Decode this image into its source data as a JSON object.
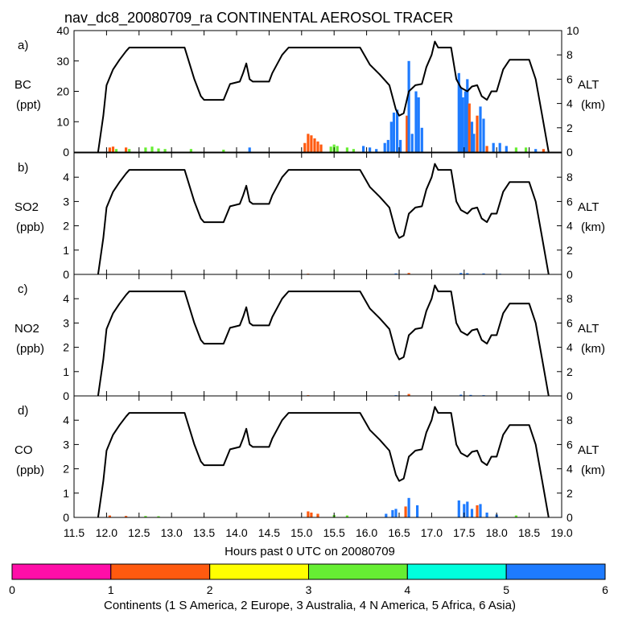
{
  "chart_data": {
    "type": "bar",
    "title": "nav_dc8_20080709_ra CONTINENTAL AEROSOL TRACER",
    "xlabel": "Hours past 0 UTC on 20080709",
    "xlim": [
      11.5,
      19.0
    ],
    "xticks": [
      "11.5",
      "12.0",
      "12.5",
      "13.0",
      "13.5",
      "14.0",
      "14.5",
      "15.0",
      "15.5",
      "16.0",
      "16.5",
      "17.0",
      "17.5",
      "18.0",
      "18.5",
      "19.0"
    ],
    "altitude": {
      "label": "ALT",
      "units": "(km)",
      "ylim": [
        0,
        10
      ],
      "yticks": [
        "0",
        "2",
        "4",
        "6",
        "8"
      ],
      "yticks_top": [
        "0",
        "2",
        "4",
        "6",
        "8",
        "10"
      ],
      "points": [
        [
          11.87,
          0
        ],
        [
          11.95,
          3.0
        ],
        [
          12.0,
          5.5
        ],
        [
          12.1,
          6.8
        ],
        [
          12.2,
          7.6
        ],
        [
          12.3,
          8.3
        ],
        [
          12.35,
          8.6
        ],
        [
          13.2,
          8.6
        ],
        [
          13.35,
          6.0
        ],
        [
          13.45,
          4.6
        ],
        [
          13.5,
          4.3
        ],
        [
          13.55,
          4.3
        ],
        [
          13.8,
          4.3
        ],
        [
          13.9,
          5.6
        ],
        [
          14.05,
          5.8
        ],
        [
          14.1,
          6.5
        ],
        [
          14.15,
          7.3
        ],
        [
          14.2,
          6.0
        ],
        [
          14.25,
          5.8
        ],
        [
          14.5,
          5.8
        ],
        [
          14.55,
          6.5
        ],
        [
          14.7,
          8.0
        ],
        [
          14.8,
          8.6
        ],
        [
          15.9,
          8.6
        ],
        [
          16.05,
          7.2
        ],
        [
          16.2,
          6.4
        ],
        [
          16.35,
          5.5
        ],
        [
          16.45,
          3.5
        ],
        [
          16.5,
          3.0
        ],
        [
          16.57,
          3.2
        ],
        [
          16.65,
          5.0
        ],
        [
          16.75,
          5.5
        ],
        [
          16.85,
          5.6
        ],
        [
          16.92,
          7.0
        ],
        [
          17.0,
          8.0
        ],
        [
          17.05,
          9.1
        ],
        [
          17.1,
          8.6
        ],
        [
          17.3,
          8.6
        ],
        [
          17.38,
          6.0
        ],
        [
          17.45,
          5.3
        ],
        [
          17.55,
          5.0
        ],
        [
          17.62,
          5.4
        ],
        [
          17.7,
          5.5
        ],
        [
          17.77,
          4.6
        ],
        [
          17.85,
          4.3
        ],
        [
          17.92,
          5.0
        ],
        [
          18.0,
          5.0
        ],
        [
          18.1,
          6.8
        ],
        [
          18.2,
          7.6
        ],
        [
          18.5,
          7.6
        ],
        [
          18.6,
          6.0
        ],
        [
          18.7,
          3.0
        ],
        [
          18.8,
          0
        ]
      ]
    },
    "panels": [
      {
        "letter": "a)",
        "species": "BC",
        "units": "(ppt)",
        "ylim": [
          0,
          40
        ],
        "yticks": [
          "0",
          "10",
          "20",
          "30",
          "40"
        ],
        "spikes": [
          [
            12.05,
            1.5,
            2
          ],
          [
            12.1,
            1.8,
            2
          ],
          [
            12.15,
            1,
            4
          ],
          [
            12.3,
            1.5,
            2
          ],
          [
            12.35,
            1,
            4
          ],
          [
            12.6,
            1.5,
            4
          ],
          [
            12.7,
            1.8,
            4
          ],
          [
            12.8,
            1.2,
            4
          ],
          [
            12.9,
            1,
            4
          ],
          [
            13.3,
            1,
            4
          ],
          [
            13.8,
            0.8,
            4
          ],
          [
            14.2,
            1.5,
            6
          ],
          [
            15.05,
            3,
            2
          ],
          [
            15.1,
            6,
            2
          ],
          [
            15.15,
            5.5,
            2
          ],
          [
            15.2,
            4.5,
            2
          ],
          [
            15.25,
            3.5,
            2
          ],
          [
            15.3,
            2.5,
            2
          ],
          [
            15.45,
            1.8,
            4
          ],
          [
            15.5,
            2.5,
            4
          ],
          [
            15.55,
            2,
            4
          ],
          [
            15.7,
            1.5,
            4
          ],
          [
            15.8,
            1,
            4
          ],
          [
            15.95,
            2,
            6
          ],
          [
            16.05,
            1.5,
            6
          ],
          [
            16.15,
            1,
            6
          ],
          [
            16.28,
            3,
            6
          ],
          [
            16.33,
            4,
            6
          ],
          [
            16.38,
            10,
            6
          ],
          [
            16.42,
            13,
            6
          ],
          [
            16.47,
            14,
            6
          ],
          [
            16.52,
            4,
            6
          ],
          [
            16.62,
            12,
            2
          ],
          [
            16.65,
            30,
            6
          ],
          [
            16.7,
            6,
            6
          ],
          [
            16.76,
            20,
            6
          ],
          [
            16.8,
            18,
            6
          ],
          [
            16.85,
            8,
            6
          ],
          [
            17.42,
            26,
            6
          ],
          [
            17.45,
            21,
            6
          ],
          [
            17.48,
            18,
            6
          ],
          [
            17.52,
            20,
            6
          ],
          [
            17.55,
            24,
            6
          ],
          [
            17.58,
            16,
            2
          ],
          [
            17.62,
            10,
            6
          ],
          [
            17.65,
            6,
            6
          ],
          [
            17.7,
            12,
            2
          ],
          [
            17.75,
            15,
            6
          ],
          [
            17.8,
            11,
            6
          ],
          [
            17.85,
            2,
            2
          ],
          [
            17.95,
            3,
            6
          ],
          [
            18.05,
            3,
            6
          ],
          [
            18.15,
            2,
            6
          ],
          [
            18.3,
            1.5,
            4
          ],
          [
            18.45,
            1.5,
            4
          ],
          [
            18.6,
            1,
            6
          ],
          [
            18.72,
            1,
            2
          ]
        ]
      },
      {
        "letter": "b)",
        "species": "SO2",
        "units": "(ppb)",
        "ylim": [
          0,
          5
        ],
        "yticks": [
          "0",
          "1",
          "2",
          "3",
          "4"
        ],
        "spikes": [
          [
            15.1,
            0.03,
            2
          ],
          [
            16.45,
            0.04,
            6
          ],
          [
            16.65,
            0.06,
            2
          ],
          [
            17.45,
            0.06,
            6
          ],
          [
            17.55,
            0.05,
            6
          ],
          [
            17.8,
            0.04,
            6
          ],
          [
            18.05,
            0.03,
            6
          ]
        ]
      },
      {
        "letter": "c)",
        "species": "NO2",
        "units": "(ppb)",
        "ylim": [
          0,
          5
        ],
        "yticks": [
          "0",
          "1",
          "2",
          "3",
          "4"
        ],
        "spikes": [
          [
            15.1,
            0.03,
            2
          ],
          [
            16.45,
            0.03,
            6
          ],
          [
            16.65,
            0.08,
            2
          ],
          [
            17.45,
            0.05,
            6
          ],
          [
            17.6,
            0.04,
            6
          ],
          [
            17.8,
            0.03,
            6
          ]
        ]
      },
      {
        "letter": "d)",
        "species": "CO",
        "units": "(ppb)",
        "ylim": [
          0,
          5
        ],
        "yticks": [
          "0",
          "1",
          "2",
          "3",
          "4"
        ],
        "spikes": [
          [
            12.05,
            0.08,
            2
          ],
          [
            12.3,
            0.06,
            2
          ],
          [
            12.6,
            0.06,
            4
          ],
          [
            12.8,
            0.05,
            4
          ],
          [
            15.1,
            0.25,
            2
          ],
          [
            15.15,
            0.2,
            2
          ],
          [
            15.25,
            0.15,
            2
          ],
          [
            15.5,
            0.1,
            4
          ],
          [
            15.7,
            0.08,
            4
          ],
          [
            16.3,
            0.15,
            6
          ],
          [
            16.4,
            0.3,
            6
          ],
          [
            16.45,
            0.35,
            6
          ],
          [
            16.6,
            0.45,
            2
          ],
          [
            16.65,
            0.8,
            6
          ],
          [
            16.78,
            0.5,
            6
          ],
          [
            17.42,
            0.7,
            6
          ],
          [
            17.5,
            0.55,
            6
          ],
          [
            17.55,
            0.65,
            6
          ],
          [
            17.62,
            0.35,
            6
          ],
          [
            17.7,
            0.5,
            2
          ],
          [
            17.75,
            0.55,
            6
          ],
          [
            17.85,
            0.2,
            6
          ],
          [
            18.0,
            0.12,
            6
          ],
          [
            18.3,
            0.08,
            4
          ]
        ]
      }
    ],
    "colorbar": {
      "label": "Continents (1 S America, 2 Europe, 3 Australia, 4 N America, 5 Africa, 6 Asia)",
      "ticks": [
        "0",
        "1",
        "2",
        "3",
        "4",
        "5",
        "6"
      ],
      "colors": [
        "#ff0ea8",
        "#ff5a0f",
        "#ffff00",
        "#66ee33",
        "#00ffdd",
        "#1e7bff"
      ]
    }
  }
}
